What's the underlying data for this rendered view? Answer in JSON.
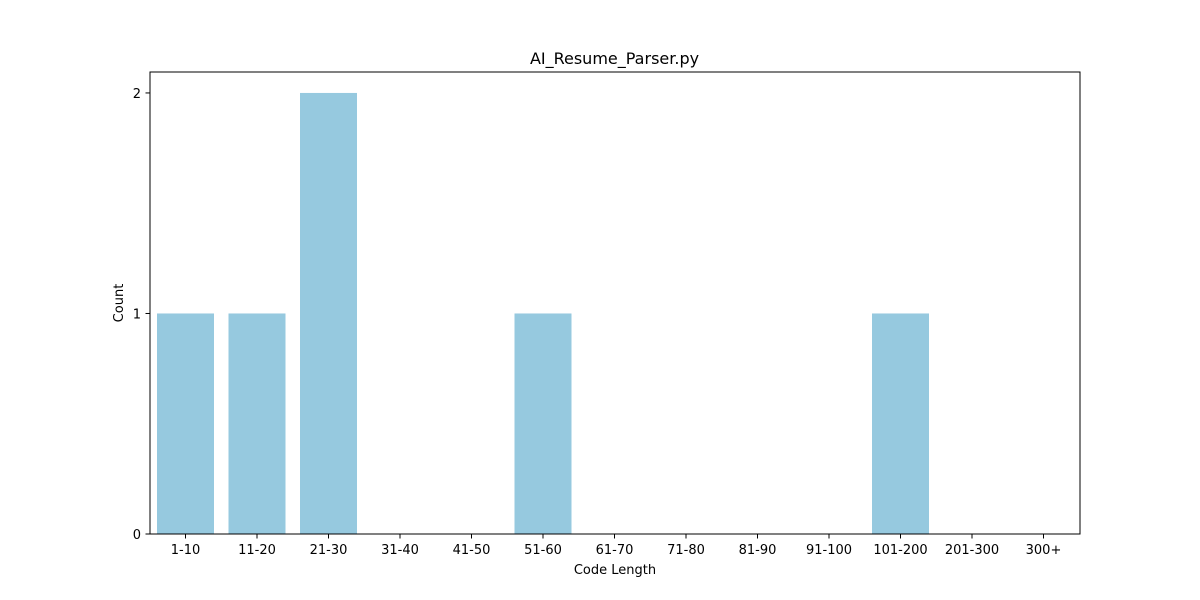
{
  "chart_data": {
    "type": "bar",
    "title": "AI_Resume_Parser.py",
    "xlabel": "Code Length",
    "ylabel": "Count",
    "categories": [
      "1-10",
      "11-20",
      "21-30",
      "31-40",
      "41-50",
      "51-60",
      "61-70",
      "71-80",
      "81-90",
      "91-100",
      "101-200",
      "201-300",
      "300+"
    ],
    "values": [
      1,
      1,
      2,
      0,
      0,
      1,
      0,
      0,
      0,
      0,
      1,
      0,
      0
    ],
    "yticks": [
      "0",
      "1",
      "2"
    ],
    "ylim": [
      0,
      2.095
    ],
    "grid": false,
    "legend": "none",
    "bar_color": "#96c9df"
  }
}
